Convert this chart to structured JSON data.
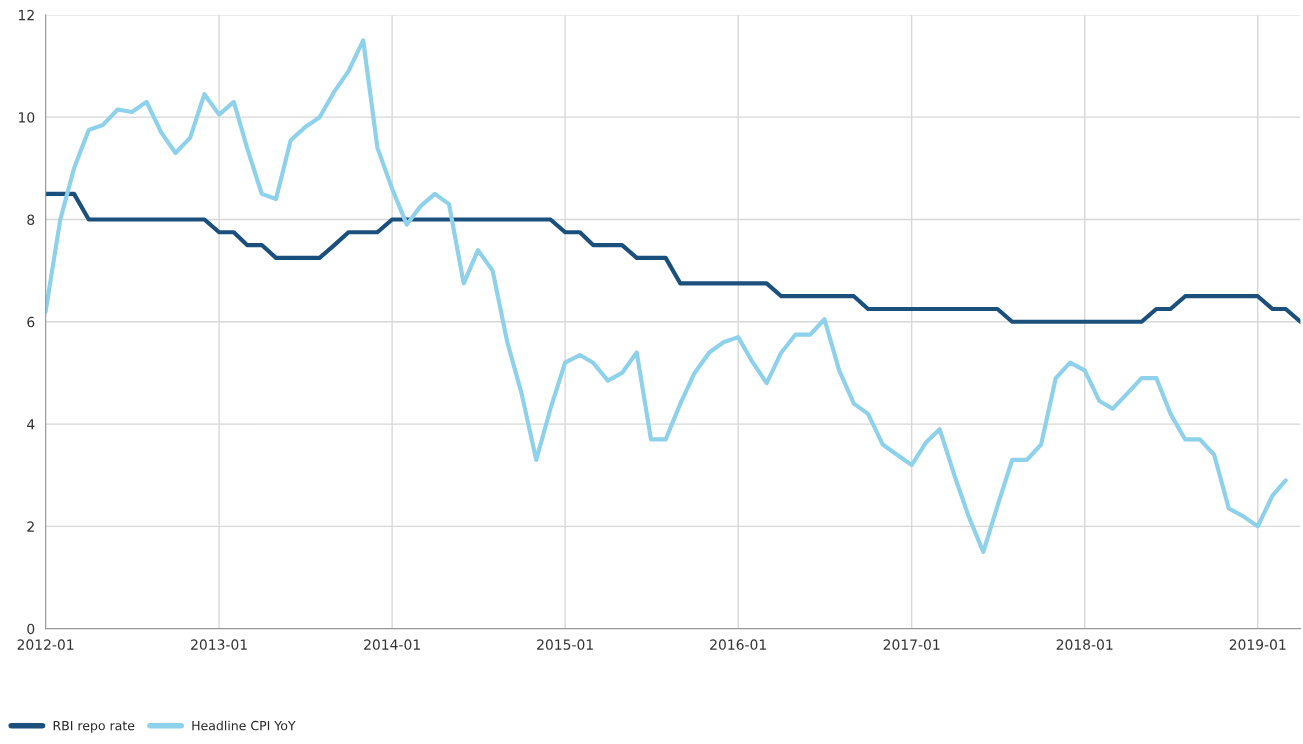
{
  "chart_data": {
    "type": "line",
    "x": [
      "2012-01",
      "2012-02",
      "2012-03",
      "2012-04",
      "2012-05",
      "2012-06",
      "2012-07",
      "2012-08",
      "2012-09",
      "2012-10",
      "2012-11",
      "2012-12",
      "2013-01",
      "2013-02",
      "2013-03",
      "2013-04",
      "2013-05",
      "2013-06",
      "2013-07",
      "2013-08",
      "2013-09",
      "2013-10",
      "2013-11",
      "2013-12",
      "2014-01",
      "2014-02",
      "2014-03",
      "2014-04",
      "2014-05",
      "2014-06",
      "2014-07",
      "2014-08",
      "2014-09",
      "2014-10",
      "2014-11",
      "2014-12",
      "2015-01",
      "2015-02",
      "2015-03",
      "2015-04",
      "2015-05",
      "2015-06",
      "2015-07",
      "2015-08",
      "2015-09",
      "2015-10",
      "2015-11",
      "2015-12",
      "2016-01",
      "2016-02",
      "2016-03",
      "2016-04",
      "2016-05",
      "2016-06",
      "2016-07",
      "2016-08",
      "2016-09",
      "2016-10",
      "2016-11",
      "2016-12",
      "2017-01",
      "2017-02",
      "2017-03",
      "2017-04",
      "2017-05",
      "2017-06",
      "2017-07",
      "2017-08",
      "2017-09",
      "2017-10",
      "2017-11",
      "2017-12",
      "2018-01",
      "2018-02",
      "2018-03",
      "2018-04",
      "2018-05",
      "2018-06",
      "2018-07",
      "2018-08",
      "2018-09",
      "2018-10",
      "2018-11",
      "2018-12",
      "2019-01",
      "2019-02",
      "2019-03",
      "2019-04"
    ],
    "series": [
      {
        "name": "RBI repo rate",
        "color": "#1b4f7c",
        "values": [
          8.5,
          8.5,
          8.5,
          8.0,
          8.0,
          8.0,
          8.0,
          8.0,
          8.0,
          8.0,
          8.0,
          8.0,
          7.75,
          7.75,
          7.5,
          7.5,
          7.25,
          7.25,
          7.25,
          7.25,
          7.5,
          7.75,
          7.75,
          7.75,
          8.0,
          8.0,
          8.0,
          8.0,
          8.0,
          8.0,
          8.0,
          8.0,
          8.0,
          8.0,
          8.0,
          8.0,
          7.75,
          7.75,
          7.5,
          7.5,
          7.5,
          7.25,
          7.25,
          7.25,
          6.75,
          6.75,
          6.75,
          6.75,
          6.75,
          6.75,
          6.75,
          6.5,
          6.5,
          6.5,
          6.5,
          6.5,
          6.5,
          6.25,
          6.25,
          6.25,
          6.25,
          6.25,
          6.25,
          6.25,
          6.25,
          6.25,
          6.25,
          6.0,
          6.0,
          6.0,
          6.0,
          6.0,
          6.0,
          6.0,
          6.0,
          6.0,
          6.0,
          6.25,
          6.25,
          6.5,
          6.5,
          6.5,
          6.5,
          6.5,
          6.5,
          6.25,
          6.25,
          6.0
        ]
      },
      {
        "name": "Headline CPI YoY",
        "color": "#8ed1ea",
        "values": [
          6.2,
          8.0,
          9.0,
          9.75,
          9.85,
          10.15,
          10.1,
          10.3,
          9.7,
          9.3,
          9.6,
          10.45,
          10.05,
          10.3,
          9.4,
          8.5,
          8.4,
          9.55,
          9.8,
          10.0,
          10.5,
          10.9,
          11.5,
          9.4,
          8.6,
          7.9,
          8.25,
          8.5,
          8.3,
          6.75,
          7.4,
          7.0,
          5.6,
          4.6,
          3.3,
          4.3,
          5.2,
          5.35,
          5.2,
          4.85,
          5.0,
          5.4,
          3.7,
          3.7,
          4.4,
          5.0,
          5.4,
          5.6,
          5.7,
          5.2,
          4.8,
          5.4,
          5.75,
          5.75,
          6.05,
          5.05,
          4.4,
          4.2,
          3.6,
          3.4,
          3.2,
          3.65,
          3.9,
          3.0,
          2.2,
          1.5,
          2.4,
          3.3,
          3.3,
          3.6,
          4.9,
          5.2,
          5.05,
          4.45,
          4.3,
          4.6,
          4.9,
          4.9,
          4.2,
          3.7,
          3.7,
          3.4,
          2.35,
          2.2,
          2.0,
          2.6,
          2.9,
          null
        ]
      }
    ],
    "xlim": [
      "2012-01",
      "2019-04"
    ],
    "xticks": [
      {
        "value": "2012-01",
        "label": "2012-01"
      },
      {
        "value": "2013-01",
        "label": "2013-01"
      },
      {
        "value": "2014-01",
        "label": "2014-01"
      },
      {
        "value": "2015-01",
        "label": "2015-01"
      },
      {
        "value": "2016-01",
        "label": "2016-01"
      },
      {
        "value": "2017-01",
        "label": "2017-01"
      },
      {
        "value": "2018-01",
        "label": "2018-01"
      },
      {
        "value": "2019-01",
        "label": "2019-01"
      }
    ],
    "ylim": [
      0,
      12
    ],
    "yticks": [
      0,
      2,
      4,
      6,
      8,
      10,
      12
    ],
    "grid": true,
    "legend": "bottom left",
    "marker": "none",
    "line_style": "solid"
  }
}
